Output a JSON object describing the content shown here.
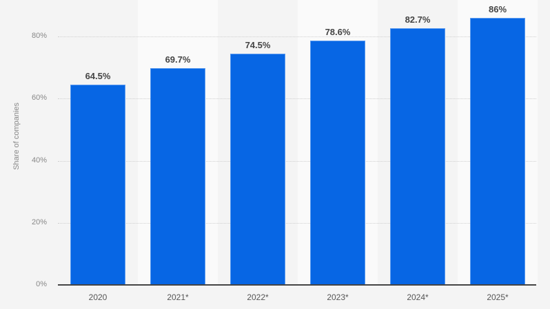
{
  "chart_data": {
    "type": "bar",
    "title": "",
    "xlabel": "",
    "ylabel": "Share of companies",
    "ylim": [
      0,
      80
    ],
    "yticks": [
      "0%",
      "20%",
      "40%",
      "60%",
      "80%"
    ],
    "categories": [
      "2020",
      "2021*",
      "2022*",
      "2023*",
      "2024*",
      "2025*"
    ],
    "values": [
      64.5,
      69.7,
      74.5,
      78.6,
      82.7,
      86
    ],
    "labels": [
      "64.5%",
      "69.7%",
      "74.5%",
      "78.6%",
      "82.7%",
      "86%"
    ],
    "grid": true,
    "bar_color": "#0766e4"
  }
}
